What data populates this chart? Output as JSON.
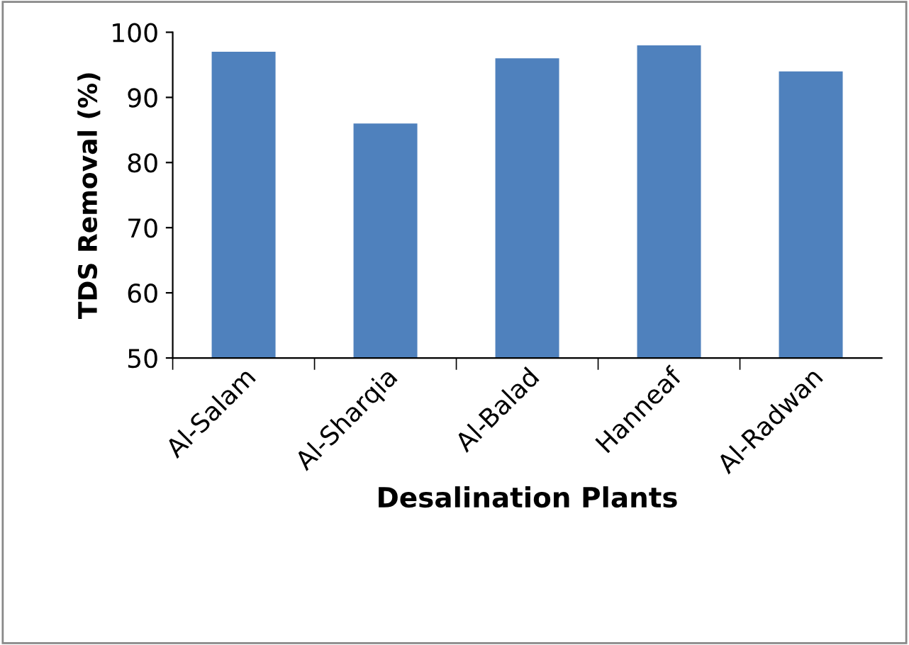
{
  "chart_data": {
    "type": "bar",
    "xlabel": "Desalination Plants",
    "ylabel": "TDS Removal (%)",
    "categories": [
      "Al-Salam",
      "Al-Sharqia",
      "Al-Balad",
      "Hanneaf",
      "Al-Radwan"
    ],
    "values": [
      97,
      86,
      96,
      98,
      94
    ],
    "color": "#4f81bd",
    "ylim": [
      50,
      100
    ],
    "yticks": [
      50,
      60,
      70,
      80,
      90,
      100
    ],
    "grid": false,
    "legend": false
  }
}
